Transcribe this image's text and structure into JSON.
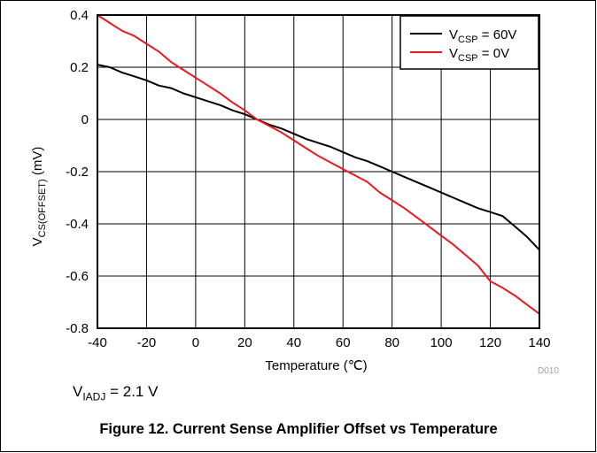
{
  "chart_data": {
    "type": "line",
    "xlabel": "Temperature (℃)",
    "ylabel": {
      "main": "V",
      "sub": "CS(OFFSET)",
      "unit": " (mV)"
    },
    "xlim": [
      -40,
      140
    ],
    "ylim": [
      -0.8,
      0.4
    ],
    "xticks": [
      -40,
      -20,
      0,
      20,
      40,
      60,
      80,
      100,
      120,
      140
    ],
    "yticks": [
      -0.8,
      -0.6,
      -0.4,
      -0.2,
      0,
      0.2,
      0.4
    ],
    "xtick_labels": [
      "-40",
      "-20",
      "0",
      "20",
      "40",
      "60",
      "80",
      "100",
      "120",
      "140"
    ],
    "ytick_labels": [
      "-0.8",
      "-0.6",
      "-0.4",
      "-0.2",
      "0",
      "0.2",
      "0.4"
    ],
    "grid": true,
    "legend_position": "top-right",
    "series": [
      {
        "legend": {
          "main": "V",
          "sub": "CSP",
          "rest": " = 60V"
        },
        "color": "#000000",
        "x": [
          -40,
          -35,
          -30,
          -25,
          -20,
          -15,
          -10,
          -5,
          0,
          5,
          10,
          15,
          20,
          25,
          30,
          35,
          40,
          45,
          50,
          55,
          60,
          65,
          70,
          75,
          80,
          85,
          90,
          95,
          100,
          105,
          110,
          115,
          120,
          125,
          130,
          135,
          140
        ],
        "y": [
          0.21,
          0.2,
          0.18,
          0.165,
          0.15,
          0.13,
          0.12,
          0.1,
          0.085,
          0.07,
          0.055,
          0.035,
          0.02,
          0.0,
          -0.02,
          -0.035,
          -0.055,
          -0.075,
          -0.09,
          -0.105,
          -0.125,
          -0.145,
          -0.16,
          -0.18,
          -0.2,
          -0.22,
          -0.24,
          -0.26,
          -0.28,
          -0.3,
          -0.32,
          -0.34,
          -0.355,
          -0.37,
          -0.41,
          -0.45,
          -0.5
        ]
      },
      {
        "legend": {
          "main": "V",
          "sub": "CSP",
          "rest": " = 0V"
        },
        "color": "#e8191f",
        "x": [
          -40,
          -35,
          -30,
          -25,
          -20,
          -15,
          -10,
          -5,
          0,
          5,
          10,
          15,
          20,
          25,
          30,
          35,
          40,
          45,
          50,
          55,
          60,
          65,
          70,
          75,
          80,
          85,
          90,
          95,
          100,
          105,
          110,
          115,
          120,
          125,
          130,
          135,
          140
        ],
        "y": [
          0.4,
          0.37,
          0.34,
          0.32,
          0.29,
          0.26,
          0.22,
          0.19,
          0.16,
          0.13,
          0.1,
          0.065,
          0.035,
          0.0,
          -0.025,
          -0.05,
          -0.08,
          -0.11,
          -0.14,
          -0.165,
          -0.19,
          -0.215,
          -0.24,
          -0.28,
          -0.31,
          -0.34,
          -0.375,
          -0.41,
          -0.445,
          -0.48,
          -0.52,
          -0.56,
          -0.62,
          -0.645,
          -0.675,
          -0.71,
          -0.745
        ]
      }
    ]
  },
  "note": {
    "main": "V",
    "sub": "IADJ",
    "rest": " = 2.1 V"
  },
  "watermark": "D010",
  "caption": "Figure 12. Current Sense Amplifier Offset vs Temperature"
}
